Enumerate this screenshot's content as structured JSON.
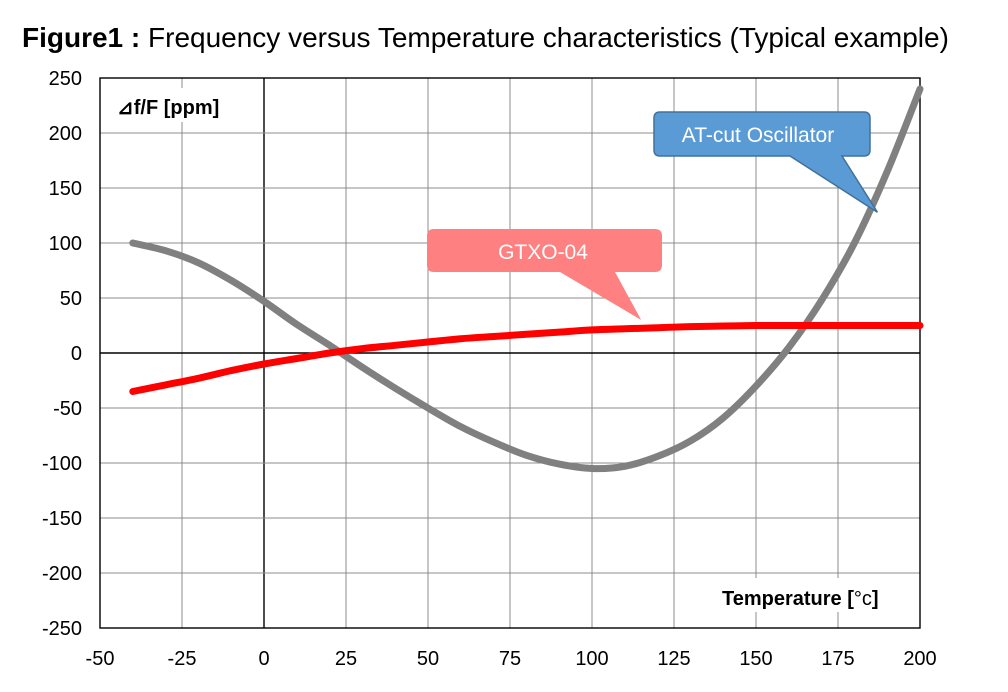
{
  "title": {
    "figure_label": "Figure1 :",
    "text": "Frequency versus Temperature characteristics (Typical example)"
  },
  "chart_data": {
    "type": "line",
    "ylabel_prefix": "⊿f/F [",
    "ylabel_unit": "ppm",
    "ylabel_suffix": "]",
    "xlabel_prefix": "Temperature [",
    "xlabel_unit": "°c",
    "xlabel_suffix": "]",
    "xlim": [
      -50,
      200
    ],
    "ylim": [
      -250,
      250
    ],
    "x_ticks": [
      -50,
      -25,
      0,
      25,
      50,
      75,
      100,
      125,
      150,
      175,
      200
    ],
    "y_ticks": [
      250,
      200,
      150,
      100,
      50,
      0,
      -50,
      -100,
      -150,
      -200,
      -250
    ],
    "grid": true,
    "series": [
      {
        "name": "AT-cut Oscillator",
        "color": "#808080",
        "x": [
          -40,
          -30,
          -20,
          -10,
          0,
          10,
          20,
          30,
          40,
          50,
          60,
          70,
          80,
          90,
          100,
          110,
          120,
          130,
          140,
          150,
          160,
          170,
          180,
          190,
          200
        ],
        "y": [
          100,
          93,
          82,
          66,
          47,
          26,
          7,
          -13,
          -32,
          -50,
          -67,
          -81,
          -93,
          -101,
          -105,
          -103,
          -94,
          -80,
          -59,
          -30,
          5,
          48,
          100,
          165,
          240
        ]
      },
      {
        "name": "GTXO-04",
        "color": "#ff0000",
        "x": [
          -40,
          -30,
          -20,
          -10,
          0,
          10,
          20,
          30,
          40,
          50,
          60,
          70,
          80,
          90,
          100,
          110,
          120,
          130,
          140,
          150,
          160,
          170,
          180,
          190,
          200
        ],
        "y": [
          -35,
          -29,
          -23,
          -16,
          -10,
          -5,
          0,
          4,
          7,
          10,
          13,
          15,
          17,
          19,
          21,
          22,
          23,
          24,
          24.5,
          25,
          25,
          25,
          25,
          25,
          25
        ]
      }
    ],
    "annotations": [
      {
        "text": "GTXO-04",
        "fill": "#ff8080",
        "points_to": [
          115,
          30
        ]
      },
      {
        "text": "AT-cut Oscillator",
        "fill": "#5b9bd5",
        "points_to": [
          187,
          128
        ]
      }
    ]
  }
}
